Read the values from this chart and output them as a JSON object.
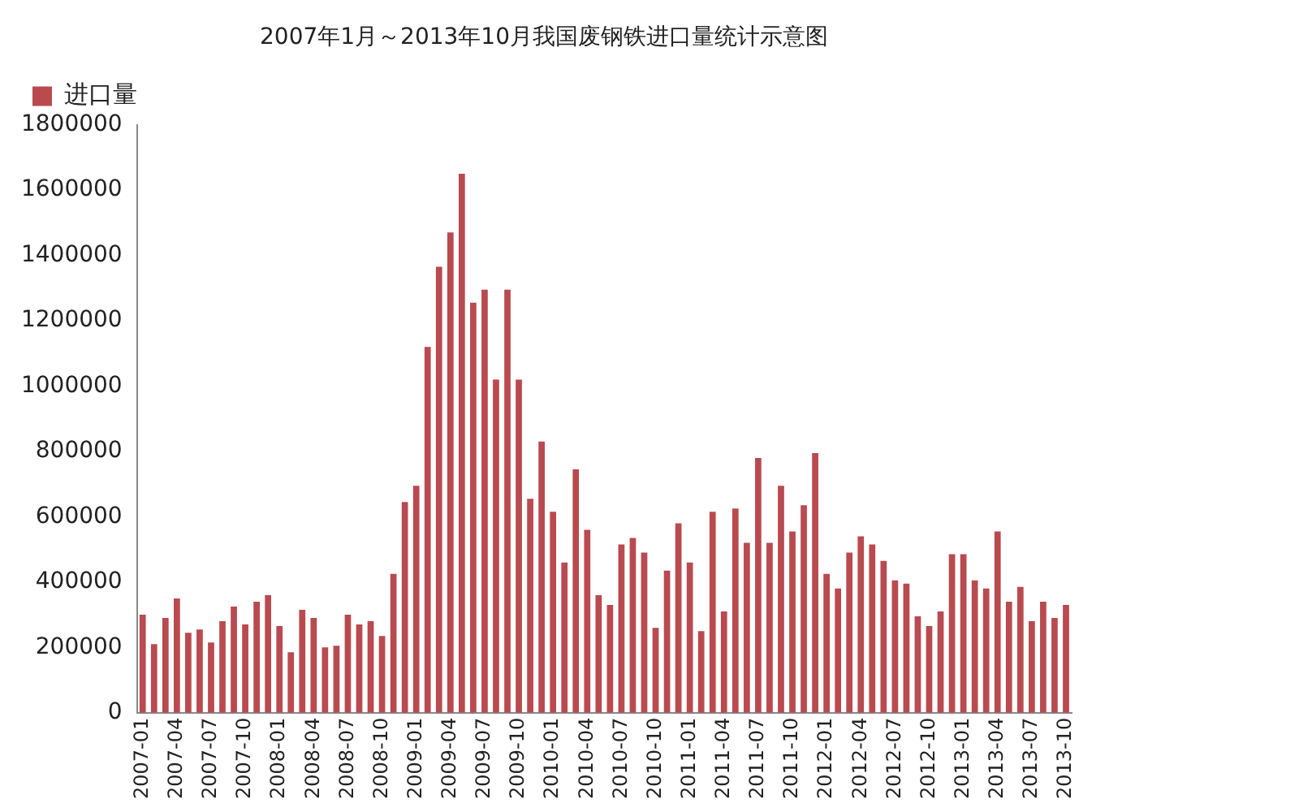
{
  "chart_data": {
    "type": "bar",
    "title": "2007年1月～2013年10月我国废钢铁进口量统计示意图",
    "categories": [
      "2007-01",
      null,
      null,
      "2007-04",
      null,
      null,
      "2007-07",
      null,
      null,
      "2007-10",
      null,
      null,
      "2008-01",
      null,
      null,
      "2008-04",
      null,
      null,
      "2008-07",
      null,
      null,
      "2008-10",
      null,
      null,
      "2009-01",
      null,
      null,
      "2009-04",
      null,
      null,
      "2009-07",
      null,
      null,
      "2009-10",
      null,
      null,
      "2010-01",
      null,
      null,
      "2010-04",
      null,
      null,
      "2010-07",
      null,
      null,
      "2010-10",
      null,
      null,
      "2011-01",
      null,
      null,
      "2011-04",
      null,
      null,
      "2011-07",
      null,
      null,
      "2011-10",
      null,
      null,
      "2012-01",
      null,
      null,
      "2012-04",
      null,
      null,
      "2012-07",
      null,
      null,
      "2012-10",
      null,
      null,
      "2013-01",
      null,
      null,
      "2013-04",
      null,
      null,
      "2013-07",
      null,
      null,
      "2013-10"
    ],
    "series": [
      {
        "name": "进口量",
        "color": "#b94a4f",
        "values": [
          300000,
          210000,
          290000,
          350000,
          245000,
          255000,
          215000,
          280000,
          325000,
          270000,
          340000,
          360000,
          265000,
          185000,
          315000,
          290000,
          200000,
          205000,
          300000,
          270000,
          280000,
          235000,
          425000,
          645000,
          695000,
          1120000,
          1365000,
          1470000,
          1650000,
          1255000,
          1295000,
          1020000,
          1295000,
          1020000,
          655000,
          830000,
          615000,
          460000,
          745000,
          560000,
          360000,
          330000,
          515000,
          535000,
          490000,
          260000,
          435000,
          580000,
          460000,
          250000,
          615000,
          310000,
          625000,
          520000,
          780000,
          520000,
          695000,
          555000,
          635000,
          795000,
          425000,
          380000,
          490000,
          540000,
          515000,
          465000,
          405000,
          395000,
          295000,
          265000,
          310000,
          485000,
          485000,
          405000,
          380000,
          555000,
          340000,
          385000,
          280000,
          340000,
          290000,
          330000
        ]
      }
    ],
    "ylim": [
      0,
      1800000
    ],
    "yticks": [
      0,
      200000,
      400000,
      600000,
      800000,
      1000000,
      1200000,
      1400000,
      1600000,
      1800000
    ],
    "grid": false,
    "legend": "top left"
  }
}
